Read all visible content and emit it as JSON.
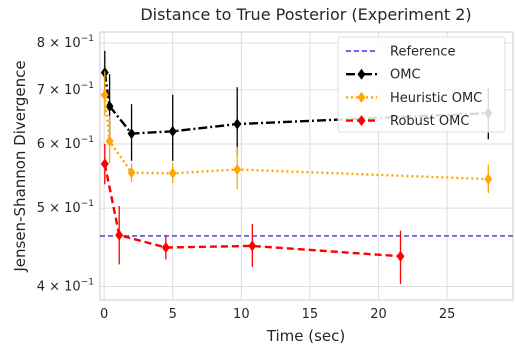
{
  "chart_data": {
    "type": "line",
    "title": "Distance to True Posterior (Experiment 2)",
    "xlabel": "Time (sec)",
    "ylabel": "Jensen-Shannon Divergence",
    "xlim": [
      -0.3,
      29.8
    ],
    "ylim": [
      0.385,
      0.825
    ],
    "yscale": "log",
    "grid": true,
    "legend_position": "top-right",
    "xticks": [
      0,
      5,
      10,
      15,
      20,
      25
    ],
    "xtick_labels": [
      "0",
      "5",
      "10",
      "15",
      "20",
      "25"
    ],
    "yticks": [
      0.4,
      0.5,
      0.6,
      0.7,
      0.8
    ],
    "ytick_labels": [
      {
        "base": "4 × 10",
        "exp": "−1"
      },
      {
        "base": "5 × 10",
        "exp": "−1"
      },
      {
        "base": "6 × 10",
        "exp": "−1"
      },
      {
        "base": "7 × 10",
        "exp": "−1"
      },
      {
        "base": "8 × 10",
        "exp": "−1"
      }
    ],
    "reference": {
      "name": "Reference",
      "y": 0.462,
      "color": "#3333ee"
    },
    "series": [
      {
        "name": "OMC",
        "color": "#000000",
        "dash": "9,3,2,3",
        "x": [
          0.05,
          0.4,
          2.0,
          5.0,
          9.7,
          28.0
        ],
        "y": [
          0.735,
          0.668,
          0.618,
          0.622,
          0.635,
          0.655
        ],
        "err_low": [
          0.7,
          0.608,
          0.572,
          0.572,
          0.582,
          0.608
        ],
        "err_high": [
          0.782,
          0.732,
          0.672,
          0.69,
          0.705,
          0.705
        ]
      },
      {
        "name": "Heuristic OMC",
        "color": "#ffa500",
        "dash": "2,3",
        "x": [
          0.05,
          0.4,
          2.0,
          5.0,
          9.7,
          28.0
        ],
        "y": [
          0.69,
          0.605,
          0.553,
          0.552,
          0.558,
          0.543
        ],
        "err_low": [
          0.65,
          0.568,
          0.538,
          0.537,
          0.528,
          0.522
        ],
        "err_high": [
          0.738,
          0.65,
          0.568,
          0.568,
          0.595,
          0.566
        ]
      },
      {
        "name": "Robust OMC",
        "color": "#ff0000",
        "dash": "7,4",
        "x": [
          0.05,
          1.1,
          4.5,
          10.8,
          21.6
        ],
        "y": [
          0.567,
          0.463,
          0.447,
          0.449,
          0.436
        ],
        "err_low": [
          0.535,
          0.426,
          0.432,
          0.423,
          0.403
        ],
        "err_high": [
          0.6,
          0.503,
          0.463,
          0.478,
          0.469
        ]
      }
    ]
  }
}
